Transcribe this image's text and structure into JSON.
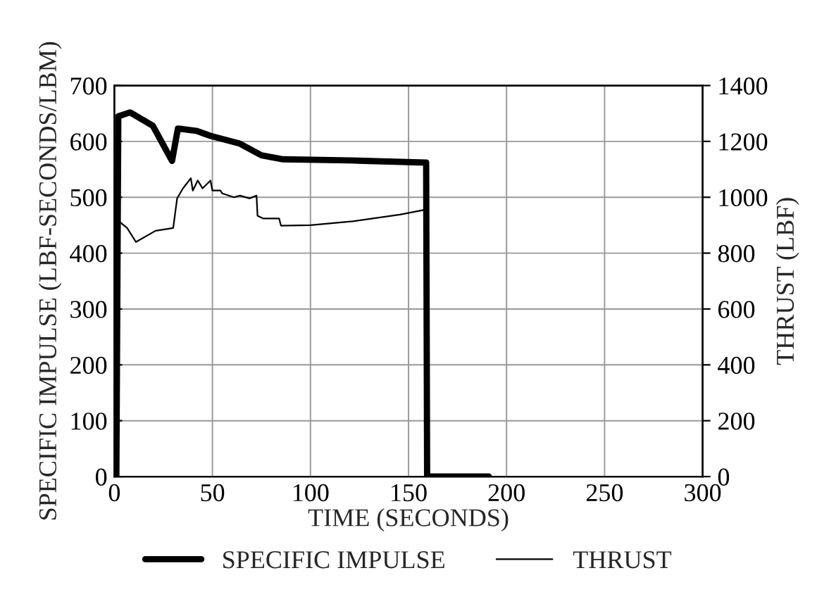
{
  "chart_data": {
    "type": "line",
    "xlabel": "TIME (SECONDS)",
    "ylabel": "SPECIFIC IMPULSE (LBF-SECONDS/LBM)",
    "y2label": "THRUST (LBF)",
    "xlim": [
      0,
      300
    ],
    "xticks": [
      0,
      50,
      100,
      150,
      200,
      250,
      300
    ],
    "ylim": [
      0,
      700
    ],
    "yticks": [
      0,
      100,
      200,
      300,
      400,
      500,
      600,
      700
    ],
    "y2lim": [
      0,
      1400
    ],
    "y2ticks": [
      0,
      200,
      400,
      600,
      800,
      1000,
      1200,
      1400
    ],
    "grid": true,
    "legend": "bottom",
    "marker": "none",
    "line_style": "solid",
    "series": [
      {
        "name": "SPECIFIC IMPULSE",
        "color": "#000000",
        "x": [
          1,
          2,
          8,
          19.6,
          29.4,
          32.4,
          41.7,
          49,
          64,
          75,
          86,
          120,
          159,
          159.5,
          191
        ],
        "values": [
          0,
          645,
          652,
          628,
          565,
          623,
          619,
          610,
          596,
          575,
          568,
          566,
          562,
          0,
          0
        ]
      },
      {
        "name": "THRUST",
        "color": "#000000",
        "axis": "y2",
        "x": [
          2,
          6.5,
          11,
          21,
          30,
          32,
          35,
          39,
          40,
          42.5,
          45,
          49,
          50,
          54,
          55,
          61,
          64,
          69,
          72.5,
          73,
          76,
          84,
          85,
          100,
          121.6,
          145.6,
          159
        ],
        "values": [
          916,
          890,
          840,
          880,
          890,
          996,
          1032,
          1068,
          1024,
          1060,
          1032,
          1060,
          1024,
          1024,
          1014,
          1000,
          1006,
          996,
          1006,
          934,
          924,
          924,
          898,
          900,
          914,
          938,
          956
        ]
      }
    ]
  }
}
